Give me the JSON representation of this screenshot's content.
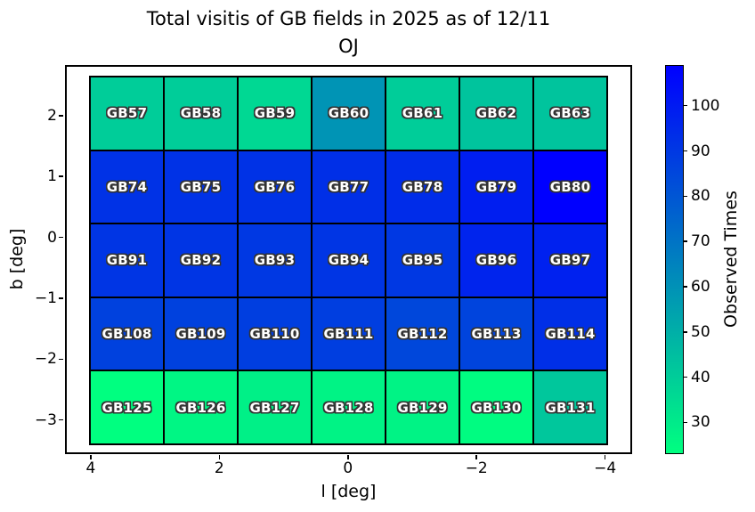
{
  "figure": {
    "title_line1": "Total visitis of GB fields in 2025 as of 12/11",
    "title_line2": "OJ"
  },
  "axes": {
    "xlabel": "l [deg]",
    "ylabel": "b [deg]",
    "x_tick_labels": [
      "4",
      "2",
      "0",
      "−2",
      "−4"
    ],
    "x_tick_values": [
      4,
      2,
      0,
      -2,
      -4
    ],
    "y_tick_labels": [
      "2",
      "1",
      "0",
      "−1",
      "−2",
      "−3"
    ],
    "y_tick_values": [
      2,
      1,
      0,
      -1,
      -2,
      -3
    ],
    "xlim": [
      4.4,
      -4.42
    ],
    "ylim": [
      -3.56,
      2.83
    ]
  },
  "colorbar": {
    "label": "Observed Times",
    "tick_labels": [
      "100",
      "90",
      "80",
      "70",
      "60",
      "50",
      "40",
      "30"
    ],
    "tick_values": [
      100,
      90,
      80,
      70,
      60,
      50,
      40,
      30
    ],
    "vmin": 23,
    "vmax": 109,
    "color_min": "#00ff80",
    "color_max": "#0000ff"
  },
  "chart_data": {
    "type": "heatmap",
    "title": "Total visitis of GB fields in 2025 as of 12/11 OJ",
    "xlabel": "l [deg]",
    "ylabel": "b [deg]",
    "value_label": "Observed Times",
    "colormap": "winter_r (green = low, blue = high)",
    "vmin": 23,
    "vmax": 109,
    "grid_shape": [
      5,
      7
    ],
    "cell_size_deg": [
      1.15,
      1.2
    ],
    "rows": [
      {
        "labels": [
          "GB57",
          "GB58",
          "GB59",
          "GB60",
          "GB61",
          "GB62",
          "GB63"
        ],
        "values": [
          40,
          40,
          36,
          59,
          40,
          43,
          43
        ]
      },
      {
        "labels": [
          "GB74",
          "GB75",
          "GB76",
          "GB77",
          "GB78",
          "GB79",
          "GB80"
        ],
        "values": [
          92,
          92,
          92,
          93,
          94,
          99,
          109
        ]
      },
      {
        "labels": [
          "GB91",
          "GB92",
          "GB93",
          "GB94",
          "GB95",
          "GB96",
          "GB97"
        ],
        "values": [
          91,
          91,
          90,
          91,
          90,
          97,
          98
        ]
      },
      {
        "labels": [
          "GB108",
          "GB109",
          "GB110",
          "GB111",
          "GB112",
          "GB113",
          "GB114"
        ],
        "values": [
          87,
          87,
          88,
          88,
          85,
          86,
          93
        ]
      },
      {
        "labels": [
          "GB125",
          "GB126",
          "GB127",
          "GB128",
          "GB129",
          "GB130",
          "GB131"
        ],
        "values": [
          23,
          26,
          28,
          27,
          27,
          24,
          42
        ]
      }
    ]
  }
}
